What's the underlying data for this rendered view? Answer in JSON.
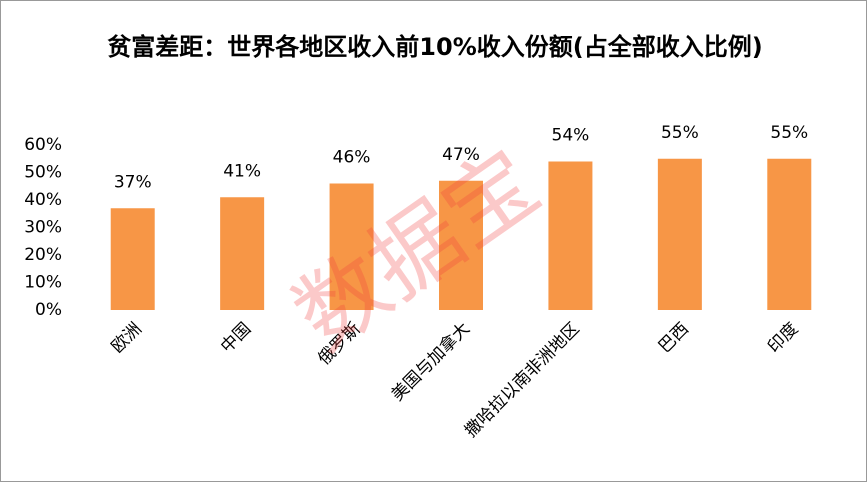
{
  "chart_data": {
    "type": "bar",
    "title": "贫富差距：世界各地区收入前10%收入份额(占全部收入比例)",
    "categories": [
      "欧洲",
      "中国",
      "俄罗斯",
      "美国与加拿大",
      "撒哈拉以南非洲地区",
      "巴西",
      "印度"
    ],
    "values": [
      37,
      41,
      46,
      47,
      54,
      55,
      55
    ],
    "value_labels": [
      "37%",
      "41%",
      "46%",
      "47%",
      "54%",
      "55%",
      "55%"
    ],
    "color": "#f79646",
    "ylim": [
      0,
      60
    ],
    "yticks": [
      {
        "value": 0,
        "label": "0%"
      },
      {
        "value": 10,
        "label": "10%"
      },
      {
        "value": 20,
        "label": "20%"
      },
      {
        "value": 30,
        "label": "30%"
      },
      {
        "value": 40,
        "label": "40%"
      },
      {
        "value": 50,
        "label": "50%"
      },
      {
        "value": 60,
        "label": "60%"
      }
    ],
    "grid": false,
    "watermark": "数据宝"
  }
}
